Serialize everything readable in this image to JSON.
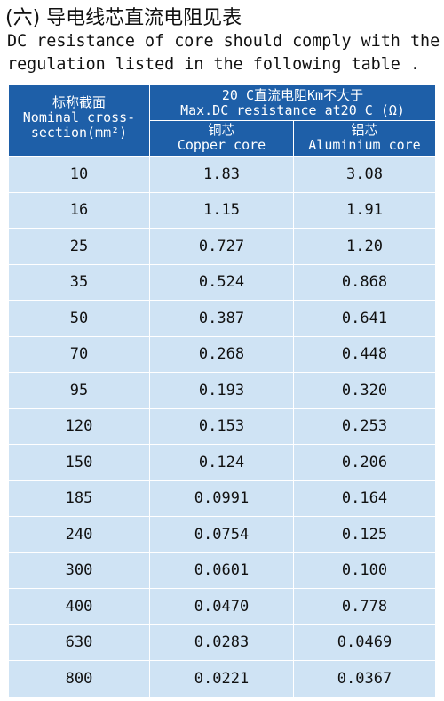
{
  "header": {
    "title": "(六) 导电线芯直流电阻见表",
    "lines": [
      "DC resistance of core should comply with the",
      "regulation listed in the following table ."
    ]
  },
  "table": {
    "columns": {
      "section": [
        "标称截面",
        "Nominal cross-",
        "section(mm²)"
      ],
      "resistance": [
        "20 C直流电阻Km不大于",
        "Max.DC resistance at20 C (Ω)"
      ],
      "copper": [
        "铜芯",
        "Copper core"
      ],
      "aluminium": [
        "铝芯",
        "Aluminium core"
      ]
    },
    "rows": [
      [
        "10",
        "1.83",
        "3.08"
      ],
      [
        "16",
        "1.15",
        "1.91"
      ],
      [
        "25",
        "0.727",
        "1.20"
      ],
      [
        "35",
        "0.524",
        "0.868"
      ],
      [
        "50",
        "0.387",
        "0.641"
      ],
      [
        "70",
        "0.268",
        "0.448"
      ],
      [
        "95",
        "0.193",
        "0.320"
      ],
      [
        "120",
        "0.153",
        "0.253"
      ],
      [
        "150",
        "0.124",
        "0.206"
      ],
      [
        "185",
        "0.0991",
        "0.164"
      ],
      [
        "240",
        "0.0754",
        "0.125"
      ],
      [
        "300",
        "0.0601",
        "0.100"
      ],
      [
        "400",
        "0.0470",
        "0.778"
      ],
      [
        "630",
        "0.0283",
        "0.0469"
      ],
      [
        "800",
        "0.0221",
        "0.0367"
      ]
    ]
  }
}
